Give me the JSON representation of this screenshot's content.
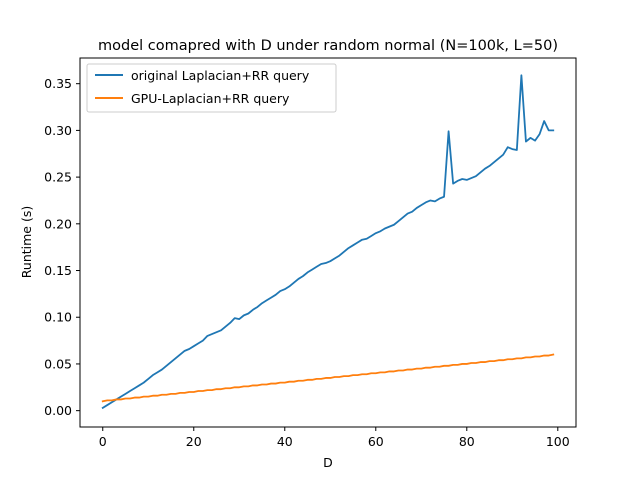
{
  "chart_data": {
    "type": "line",
    "title": "model comapred with D under random normal (N=100k, L=50)",
    "xlabel": "D",
    "ylabel": "Runtime (s)",
    "xlim": [
      -5,
      104
    ],
    "ylim": [
      -0.0175,
      0.3775
    ],
    "xticks": [
      0,
      20,
      40,
      60,
      80,
      100
    ],
    "xtick_labels": [
      "0",
      "20",
      "40",
      "60",
      "80",
      "100"
    ],
    "yticks": [
      0.0,
      0.05,
      0.1,
      0.15,
      0.2,
      0.25,
      0.3,
      0.35
    ],
    "ytick_labels": [
      "0.00",
      "0.05",
      "0.10",
      "0.15",
      "0.20",
      "0.25",
      "0.30",
      "0.35"
    ],
    "grid": false,
    "legend_position": "upper left",
    "x": [
      0,
      1,
      2,
      3,
      4,
      5,
      6,
      7,
      8,
      9,
      10,
      11,
      12,
      13,
      14,
      15,
      16,
      17,
      18,
      19,
      20,
      21,
      22,
      23,
      24,
      25,
      26,
      27,
      28,
      29,
      30,
      31,
      32,
      33,
      34,
      35,
      36,
      37,
      38,
      39,
      40,
      41,
      42,
      43,
      44,
      45,
      46,
      47,
      48,
      49,
      50,
      51,
      52,
      53,
      54,
      55,
      56,
      57,
      58,
      59,
      60,
      61,
      62,
      63,
      64,
      65,
      66,
      67,
      68,
      69,
      70,
      71,
      72,
      73,
      74,
      75,
      76,
      77,
      78,
      79,
      80,
      81,
      82,
      83,
      84,
      85,
      86,
      87,
      88,
      89,
      90,
      91,
      92,
      93,
      94,
      95,
      96,
      97,
      98,
      99
    ],
    "series": [
      {
        "name": "original Laplacian+RR query",
        "color": "#1f77b4",
        "values": [
          0.003,
          0.006,
          0.009,
          0.012,
          0.015,
          0.018,
          0.021,
          0.024,
          0.027,
          0.03,
          0.034,
          0.038,
          0.041,
          0.044,
          0.048,
          0.052,
          0.056,
          0.06,
          0.064,
          0.066,
          0.069,
          0.072,
          0.075,
          0.08,
          0.082,
          0.084,
          0.086,
          0.09,
          0.094,
          0.099,
          0.098,
          0.102,
          0.104,
          0.108,
          0.111,
          0.115,
          0.118,
          0.121,
          0.124,
          0.128,
          0.13,
          0.133,
          0.137,
          0.141,
          0.144,
          0.148,
          0.151,
          0.154,
          0.157,
          0.158,
          0.16,
          0.163,
          0.166,
          0.17,
          0.174,
          0.177,
          0.18,
          0.183,
          0.184,
          0.187,
          0.19,
          0.192,
          0.195,
          0.197,
          0.199,
          0.203,
          0.207,
          0.211,
          0.213,
          0.217,
          0.22,
          0.223,
          0.225,
          0.224,
          0.227,
          0.229,
          0.299,
          0.243,
          0.246,
          0.248,
          0.247,
          0.249,
          0.251,
          0.255,
          0.259,
          0.262,
          0.266,
          0.27,
          0.274,
          0.282,
          0.28,
          0.279,
          0.359,
          0.288,
          0.292,
          0.289,
          0.296,
          0.31,
          0.3,
          0.3
        ]
      },
      {
        "name": "GPU-Laplacian+RR query",
        "color": "#ff7f0e",
        "values": [
          0.01,
          0.011,
          0.011,
          0.012,
          0.012,
          0.013,
          0.013,
          0.014,
          0.014,
          0.015,
          0.015,
          0.016,
          0.016,
          0.017,
          0.017,
          0.018,
          0.018,
          0.019,
          0.019,
          0.02,
          0.02,
          0.021,
          0.021,
          0.022,
          0.022,
          0.023,
          0.023,
          0.024,
          0.024,
          0.025,
          0.025,
          0.026,
          0.026,
          0.027,
          0.027,
          0.028,
          0.028,
          0.029,
          0.029,
          0.03,
          0.03,
          0.031,
          0.031,
          0.032,
          0.032,
          0.033,
          0.033,
          0.034,
          0.034,
          0.035,
          0.035,
          0.036,
          0.036,
          0.037,
          0.037,
          0.038,
          0.038,
          0.039,
          0.039,
          0.04,
          0.04,
          0.041,
          0.041,
          0.042,
          0.042,
          0.043,
          0.043,
          0.044,
          0.044,
          0.045,
          0.045,
          0.046,
          0.046,
          0.047,
          0.047,
          0.048,
          0.048,
          0.049,
          0.049,
          0.05,
          0.05,
          0.051,
          0.051,
          0.052,
          0.052,
          0.053,
          0.053,
          0.054,
          0.054,
          0.055,
          0.055,
          0.056,
          0.056,
          0.057,
          0.057,
          0.058,
          0.058,
          0.059,
          0.059,
          0.06
        ]
      }
    ]
  }
}
